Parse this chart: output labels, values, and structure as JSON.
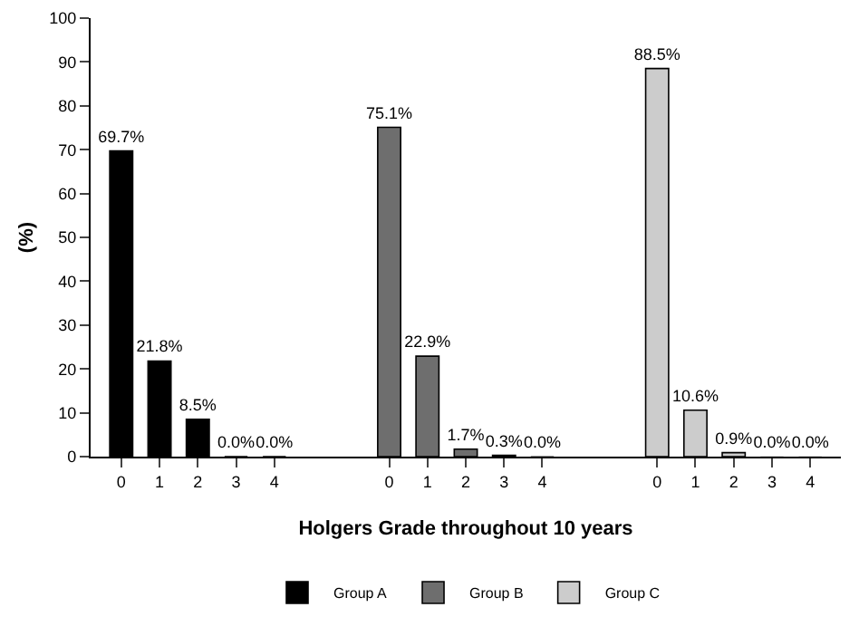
{
  "chart_data": {
    "type": "bar",
    "xlabel": "Holgers Grade throughout 10 years",
    "ylabel": "(%)",
    "categories": [
      "0",
      "1",
      "2",
      "3",
      "4",
      null,
      null,
      "0",
      "1",
      "2",
      "3",
      "4",
      null,
      null,
      "0",
      "1",
      "2",
      "3",
      "4"
    ],
    "series": [
      {
        "name": "Group A",
        "color": "#000000",
        "values": [
          69.7,
          21.8,
          8.5,
          0.0,
          0.0,
          null,
          null,
          null,
          null,
          null,
          null,
          null,
          null,
          null,
          null,
          null,
          null,
          null,
          null
        ],
        "value_labels": [
          "69.7%",
          "21.8%",
          "8.5%",
          "0.0%",
          "0.0%",
          null,
          null,
          null,
          null,
          null,
          null,
          null,
          null,
          null,
          null,
          null,
          null,
          null,
          null
        ]
      },
      {
        "name": "Group B",
        "color": "#6e6e6e",
        "values": [
          null,
          null,
          null,
          null,
          null,
          null,
          null,
          75.1,
          22.9,
          1.7,
          0.3,
          0.0,
          null,
          null,
          null,
          null,
          null,
          null,
          null
        ],
        "value_labels": [
          null,
          null,
          null,
          null,
          null,
          null,
          null,
          "75.1%",
          "22.9%",
          "1.7%",
          "0.3%",
          "0.0%",
          null,
          null,
          null,
          null,
          null,
          null,
          null
        ]
      },
      {
        "name": "Group C",
        "color": "#cccccc",
        "values": [
          null,
          null,
          null,
          null,
          null,
          null,
          null,
          null,
          null,
          null,
          null,
          null,
          null,
          null,
          88.5,
          10.6,
          0.9,
          0.0,
          0.0
        ],
        "value_labels": [
          null,
          null,
          null,
          null,
          null,
          null,
          null,
          null,
          null,
          null,
          null,
          null,
          null,
          null,
          "88.5%",
          "10.6%",
          "0.9%",
          "0.0%",
          "0.0%"
        ]
      }
    ],
    "ylim": [
      0,
      100
    ],
    "yticks": [
      0,
      10,
      20,
      30,
      40,
      50,
      60,
      70,
      80,
      90,
      100
    ],
    "grid": false,
    "legend": "bottom"
  }
}
